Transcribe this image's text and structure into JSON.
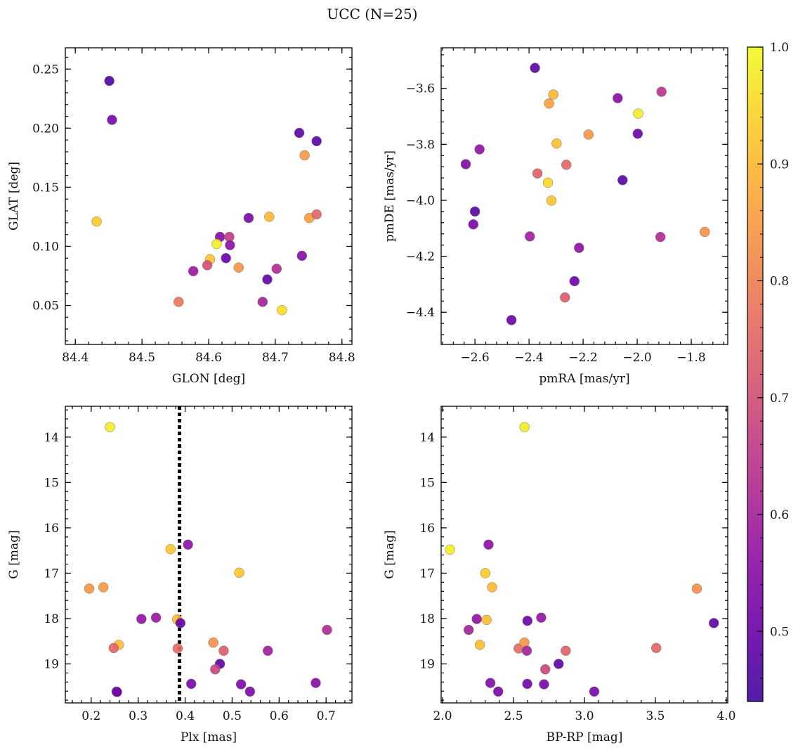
{
  "figure": {
    "title": "UCC (N=25)"
  },
  "colorbar": {
    "colormap": "plasma",
    "range": [
      0.44,
      1.0
    ],
    "ticks": [
      0.5,
      0.6,
      0.7,
      0.8,
      0.9,
      1.0
    ],
    "tick_labels": [
      "0.5",
      "0.6",
      "0.7",
      "0.8",
      "0.9",
      "1.0"
    ]
  },
  "chart_data": [
    {
      "type": "scatter",
      "id": "glon-glat",
      "xlabel": "GLON [deg]",
      "ylabel": "GLAT [deg]",
      "xlim": [
        84.385,
        84.815
      ],
      "ylim": [
        0.017,
        0.268
      ],
      "xticks": [
        84.4,
        84.5,
        84.6,
        84.7,
        84.8
      ],
      "xtick_labels": [
        "84.4",
        "84.5",
        "84.6",
        "84.7",
        "84.8"
      ],
      "yticks": [
        0.05,
        0.1,
        0.15,
        0.2,
        0.25
      ],
      "ytick_labels": [
        "0.05",
        "0.10",
        "0.15",
        "0.20",
        "0.25"
      ],
      "points": [
        {
          "x": 84.451,
          "y": 0.24,
          "c": 0.46
        },
        {
          "x": 84.455,
          "y": 0.207,
          "c": 0.52
        },
        {
          "x": 84.736,
          "y": 0.196,
          "c": 0.48
        },
        {
          "x": 84.762,
          "y": 0.189,
          "c": 0.47
        },
        {
          "x": 84.744,
          "y": 0.177,
          "c": 0.85
        },
        {
          "x": 84.432,
          "y": 0.121,
          "c": 0.93
        },
        {
          "x": 84.66,
          "y": 0.124,
          "c": 0.53
        },
        {
          "x": 84.691,
          "y": 0.125,
          "c": 0.9
        },
        {
          "x": 84.751,
          "y": 0.124,
          "c": 0.86
        },
        {
          "x": 84.762,
          "y": 0.127,
          "c": 0.75
        },
        {
          "x": 84.617,
          "y": 0.108,
          "c": 0.54
        },
        {
          "x": 84.631,
          "y": 0.108,
          "c": 0.66
        },
        {
          "x": 84.612,
          "y": 0.102,
          "c": 0.98
        },
        {
          "x": 84.632,
          "y": 0.101,
          "c": 0.56
        },
        {
          "x": 84.602,
          "y": 0.089,
          "c": 0.92
        },
        {
          "x": 84.626,
          "y": 0.09,
          "c": 0.5
        },
        {
          "x": 84.598,
          "y": 0.084,
          "c": 0.7
        },
        {
          "x": 84.577,
          "y": 0.079,
          "c": 0.58
        },
        {
          "x": 84.645,
          "y": 0.082,
          "c": 0.84
        },
        {
          "x": 84.702,
          "y": 0.081,
          "c": 0.62
        },
        {
          "x": 84.74,
          "y": 0.092,
          "c": 0.55
        },
        {
          "x": 84.688,
          "y": 0.072,
          "c": 0.49
        },
        {
          "x": 84.555,
          "y": 0.053,
          "c": 0.78
        },
        {
          "x": 84.681,
          "y": 0.053,
          "c": 0.6
        },
        {
          "x": 84.71,
          "y": 0.046,
          "c": 0.96
        }
      ]
    },
    {
      "type": "scatter",
      "id": "pmra-pmde",
      "xlabel": "pmRA [mas/yr]",
      "ylabel": "pmDE [mas/yr]",
      "xlim": [
        -2.725,
        -1.665
      ],
      "ylim": [
        -4.515,
        -3.455
      ],
      "xticks": [
        -2.6,
        -2.4,
        -2.2,
        -2.0,
        -1.8
      ],
      "xtick_labels": [
        "−2.6",
        "−2.4",
        "−2.2",
        "−2.0",
        "−1.8"
      ],
      "yticks": [
        -4.4,
        -4.2,
        -4.0,
        -3.8,
        -3.6
      ],
      "ytick_labels": [
        "−4.4",
        "−4.2",
        "−4.0",
        "−3.8",
        "−3.6"
      ],
      "points": [
        {
          "x": -2.378,
          "y": -3.527,
          "c": 0.48
        },
        {
          "x": -2.31,
          "y": -3.622,
          "c": 0.9
        },
        {
          "x": -2.326,
          "y": -3.654,
          "c": 0.86
        },
        {
          "x": -1.91,
          "y": -3.612,
          "c": 0.64
        },
        {
          "x": -2.072,
          "y": -3.635,
          "c": 0.55
        },
        {
          "x": -1.996,
          "y": -3.69,
          "c": 0.98
        },
        {
          "x": -2.18,
          "y": -3.765,
          "c": 0.84
        },
        {
          "x": -1.998,
          "y": -3.762,
          "c": 0.5
        },
        {
          "x": -2.298,
          "y": -3.797,
          "c": 0.91
        },
        {
          "x": -2.583,
          "y": -3.818,
          "c": 0.57
        },
        {
          "x": -2.634,
          "y": -3.871,
          "c": 0.54
        },
        {
          "x": -2.262,
          "y": -3.873,
          "c": 0.75
        },
        {
          "x": -2.369,
          "y": -3.904,
          "c": 0.74
        },
        {
          "x": -2.33,
          "y": -3.937,
          "c": 0.95
        },
        {
          "x": -2.054,
          "y": -3.928,
          "c": 0.47
        },
        {
          "x": -2.317,
          "y": -4.001,
          "c": 0.92
        },
        {
          "x": -2.6,
          "y": -4.04,
          "c": 0.47
        },
        {
          "x": -2.606,
          "y": -4.086,
          "c": 0.52
        },
        {
          "x": -1.75,
          "y": -4.113,
          "c": 0.83
        },
        {
          "x": -2.397,
          "y": -4.129,
          "c": 0.59
        },
        {
          "x": -1.914,
          "y": -4.131,
          "c": 0.62
        },
        {
          "x": -2.215,
          "y": -4.17,
          "c": 0.56
        },
        {
          "x": -2.232,
          "y": -4.289,
          "c": 0.5
        },
        {
          "x": -2.267,
          "y": -4.347,
          "c": 0.73
        },
        {
          "x": -2.465,
          "y": -4.428,
          "c": 0.5
        }
      ]
    },
    {
      "type": "scatter",
      "id": "plx-g",
      "xlabel": "Plx [mas]",
      "ylabel": "G [mag]",
      "xlim": [
        0.145,
        0.755
      ],
      "ylim": [
        13.32,
        19.86
      ],
      "y_inverted": true,
      "reference_line": {
        "axis": "x",
        "value": 0.388,
        "style": "dotted"
      },
      "xticks": [
        0.1,
        0.2,
        0.3,
        0.4,
        0.5,
        0.6,
        0.7
      ],
      "xtick_labels": [
        "0.1",
        "0.2",
        "0.3",
        "0.4",
        "0.5",
        "0.6",
        "0.7"
      ],
      "yticks": [
        14,
        15,
        16,
        17,
        18,
        19
      ],
      "ytick_labels": [
        "14",
        "15",
        "16",
        "17",
        "18",
        "19"
      ],
      "points": [
        {
          "x": 0.24,
          "y": 13.78,
          "c": 0.98
        },
        {
          "x": 0.406,
          "y": 16.37,
          "c": 0.56
        },
        {
          "x": 0.369,
          "y": 16.47,
          "c": 0.92
        },
        {
          "x": 0.515,
          "y": 16.99,
          "c": 0.93
        },
        {
          "x": 0.196,
          "y": 17.34,
          "c": 0.84
        },
        {
          "x": 0.226,
          "y": 17.31,
          "c": 0.85
        },
        {
          "x": 0.307,
          "y": 18.01,
          "c": 0.57
        },
        {
          "x": 0.338,
          "y": 17.98,
          "c": 0.58
        },
        {
          "x": 0.383,
          "y": 18.02,
          "c": 0.91
        },
        {
          "x": 0.39,
          "y": 18.1,
          "c": 0.5
        },
        {
          "x": 0.702,
          "y": 18.25,
          "c": 0.62
        },
        {
          "x": 0.259,
          "y": 18.58,
          "c": 0.91
        },
        {
          "x": 0.248,
          "y": 18.65,
          "c": 0.75
        },
        {
          "x": 0.384,
          "y": 18.66,
          "c": 0.76
        },
        {
          "x": 0.46,
          "y": 18.53,
          "c": 0.83
        },
        {
          "x": 0.482,
          "y": 18.71,
          "c": 0.73
        },
        {
          "x": 0.576,
          "y": 18.71,
          "c": 0.59
        },
        {
          "x": 0.474,
          "y": 19.0,
          "c": 0.48
        },
        {
          "x": 0.464,
          "y": 19.12,
          "c": 0.68
        },
        {
          "x": 0.413,
          "y": 19.44,
          "c": 0.52
        },
        {
          "x": 0.519,
          "y": 19.45,
          "c": 0.53
        },
        {
          "x": 0.678,
          "y": 19.42,
          "c": 0.55
        },
        {
          "x": 0.254,
          "y": 19.61,
          "c": 0.51
        },
        {
          "x": 0.538,
          "y": 19.61,
          "c": 0.53
        },
        {
          "x": 0.255,
          "y": 19.62,
          "c": 0.52
        }
      ]
    },
    {
      "type": "scatter",
      "id": "bprp-g",
      "xlabel": "BP-RP [mag]",
      "ylabel": "G [mag]",
      "xlim": [
        1.99,
        4.01
      ],
      "ylim": [
        13.32,
        19.86
      ],
      "y_inverted": true,
      "xticks": [
        2.0,
        2.5,
        3.0,
        3.5,
        4.0
      ],
      "xtick_labels": [
        "2.0",
        "2.5",
        "3.0",
        "3.5",
        "4.0"
      ],
      "yticks": [
        14,
        15,
        16,
        17,
        18,
        19
      ],
      "ytick_labels": [
        "14",
        "15",
        "16",
        "17",
        "18",
        "19"
      ],
      "points": [
        {
          "x": 2.578,
          "y": 13.78,
          "c": 0.98
        },
        {
          "x": 2.052,
          "y": 16.48,
          "c": 0.98
        },
        {
          "x": 2.324,
          "y": 16.37,
          "c": 0.56
        },
        {
          "x": 2.301,
          "y": 17.0,
          "c": 0.93
        },
        {
          "x": 2.349,
          "y": 17.31,
          "c": 0.9
        },
        {
          "x": 3.792,
          "y": 17.34,
          "c": 0.83
        },
        {
          "x": 2.241,
          "y": 18.01,
          "c": 0.57
        },
        {
          "x": 2.31,
          "y": 18.03,
          "c": 0.91
        },
        {
          "x": 2.598,
          "y": 18.05,
          "c": 0.5
        },
        {
          "x": 2.695,
          "y": 17.98,
          "c": 0.57
        },
        {
          "x": 3.912,
          "y": 18.1,
          "c": 0.48
        },
        {
          "x": 2.184,
          "y": 18.25,
          "c": 0.6
        },
        {
          "x": 2.263,
          "y": 18.58,
          "c": 0.91
        },
        {
          "x": 2.536,
          "y": 18.66,
          "c": 0.76
        },
        {
          "x": 2.577,
          "y": 18.53,
          "c": 0.84
        },
        {
          "x": 2.594,
          "y": 18.71,
          "c": 0.6
        },
        {
          "x": 2.868,
          "y": 18.71,
          "c": 0.74
        },
        {
          "x": 3.506,
          "y": 18.65,
          "c": 0.75
        },
        {
          "x": 2.724,
          "y": 19.12,
          "c": 0.68
        },
        {
          "x": 2.818,
          "y": 19.0,
          "c": 0.48
        },
        {
          "x": 2.337,
          "y": 19.42,
          "c": 0.54
        },
        {
          "x": 2.597,
          "y": 19.44,
          "c": 0.51
        },
        {
          "x": 2.715,
          "y": 19.45,
          "c": 0.52
        },
        {
          "x": 2.392,
          "y": 19.61,
          "c": 0.52
        },
        {
          "x": 3.069,
          "y": 19.61,
          "c": 0.52
        }
      ]
    }
  ]
}
